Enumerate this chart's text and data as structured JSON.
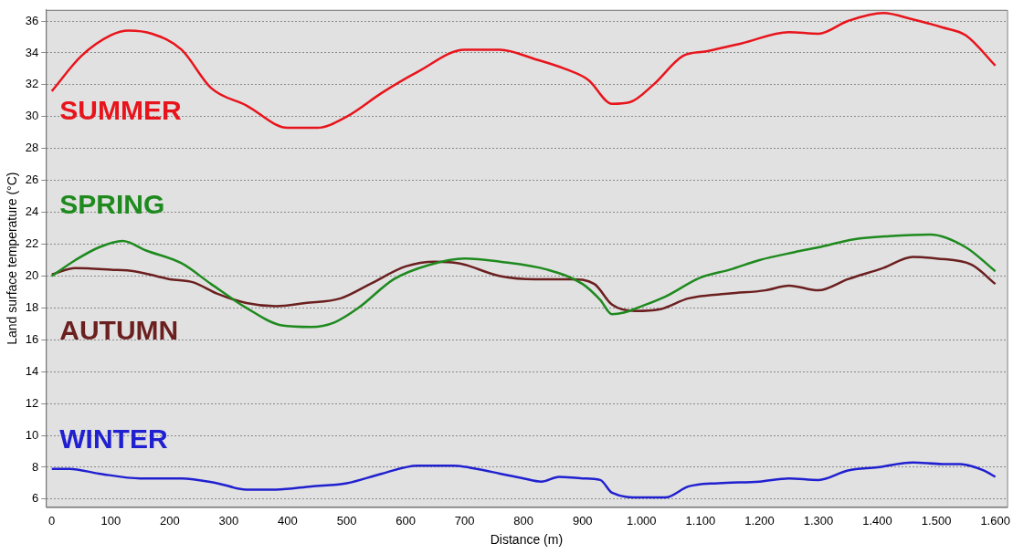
{
  "chart_data": {
    "type": "line",
    "xlabel": "Distance (m)",
    "ylabel": "Land surface temperature (°C)",
    "xlim": [
      -10,
      1620
    ],
    "ylim": [
      5.5,
      36.7
    ],
    "xticks": [
      0,
      100,
      200,
      300,
      400,
      500,
      600,
      700,
      800,
      900,
      {
        "value": 1000,
        "label": "1.000"
      },
      {
        "value": 1100,
        "label": "1.100"
      },
      {
        "value": 1200,
        "label": "1.200"
      },
      {
        "value": 1300,
        "label": "1.300"
      },
      {
        "value": 1400,
        "label": "1.400"
      },
      {
        "value": 1500,
        "label": "1.500"
      },
      {
        "value": 1600,
        "label": "1.600"
      }
    ],
    "yticks": [
      6,
      8,
      10,
      12,
      14,
      16,
      18,
      20,
      22,
      24,
      26,
      28,
      30,
      32,
      34,
      36
    ],
    "grid": "y",
    "legend": false,
    "marker": "none",
    "line_style": "solid",
    "series": [
      {
        "name": "SUMMER",
        "color": "#e8141c",
        "x": [
          0,
          50,
          100,
          130,
          170,
          220,
          270,
          330,
          400,
          450,
          500,
          560,
          620,
          700,
          760,
          820,
          870,
          910,
          950,
          980,
          1020,
          1070,
          1110,
          1170,
          1250,
          1300,
          1350,
          1410,
          1460,
          1510,
          1550,
          1600
        ],
        "values": [
          31.6,
          33.8,
          35.1,
          35.4,
          35.2,
          34.2,
          31.8,
          30.7,
          29.3,
          29.3,
          30,
          31.5,
          32.8,
          34.2,
          34.2,
          33.6,
          33,
          32.3,
          30.8,
          30.9,
          32,
          33.8,
          34.1,
          34.6,
          35.3,
          35.2,
          36,
          36.5,
          36.1,
          35.6,
          35.1,
          33.2
        ]
      },
      {
        "name": "SPRING",
        "color": "#1e8a1e",
        "x": [
          0,
          40,
          80,
          120,
          160,
          220,
          270,
          330,
          390,
          440,
          480,
          520,
          580,
          640,
          700,
          760,
          840,
          900,
          930,
          950,
          970,
          1000,
          1040,
          1100,
          1150,
          1200,
          1260,
          1300,
          1360,
          1420,
          1490,
          1550,
          1600
        ],
        "values": [
          20,
          21,
          21.8,
          22.2,
          21.6,
          20.8,
          19.5,
          18,
          16.9,
          16.8,
          17.1,
          18,
          19.8,
          20.7,
          21.1,
          20.9,
          20.4,
          19.5,
          18.5,
          17.6,
          17.7,
          18.1,
          18.7,
          19.9,
          20.4,
          21,
          21.5,
          21.8,
          22.3,
          22.5,
          22.6,
          21.8,
          20.3
        ]
      },
      {
        "name": "AUTUMN",
        "color": "#6b1f1f",
        "x": [
          0,
          40,
          100,
          140,
          200,
          240,
          280,
          330,
          380,
          430,
          490,
          540,
          600,
          650,
          690,
          760,
          820,
          880,
          920,
          950,
          990,
          1030,
          1080,
          1150,
          1210,
          1250,
          1300,
          1350,
          1410,
          1460,
          1500,
          1560,
          1600
        ],
        "values": [
          20.1,
          20.5,
          20.4,
          20.3,
          19.8,
          19.6,
          18.9,
          18.3,
          18.1,
          18.3,
          18.6,
          19.5,
          20.6,
          20.9,
          20.8,
          20,
          19.8,
          19.8,
          19.5,
          18.2,
          17.8,
          17.9,
          18.6,
          18.9,
          19.1,
          19.4,
          19.1,
          19.8,
          20.5,
          21.2,
          21.1,
          20.7,
          19.5
        ]
      },
      {
        "name": "WINTER",
        "color": "#2020d0",
        "x": [
          0,
          30,
          80,
          150,
          220,
          280,
          330,
          380,
          440,
          500,
          560,
          620,
          680,
          720,
          760,
          800,
          830,
          860,
          900,
          930,
          950,
          1000,
          1040,
          1080,
          1130,
          1200,
          1250,
          1300,
          1350,
          1400,
          1460,
          1510,
          1540,
          1580,
          1600
        ],
        "values": [
          7.9,
          7.9,
          7.6,
          7.3,
          7.3,
          7,
          6.6,
          6.6,
          6.8,
          7,
          7.6,
          8.1,
          8.1,
          7.9,
          7.6,
          7.3,
          7.1,
          7.4,
          7.3,
          7.2,
          6.4,
          6.1,
          6.1,
          6.8,
          7,
          7.1,
          7.3,
          7.2,
          7.8,
          8,
          8.3,
          8.2,
          8.2,
          7.8,
          7.4
        ]
      }
    ]
  }
}
